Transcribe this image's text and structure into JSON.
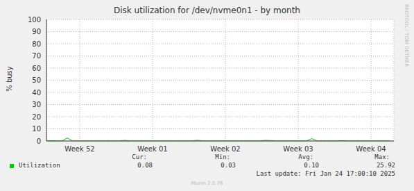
{
  "chart_data": {
    "type": "line",
    "title": "Disk utilization for /dev/nvme0n1 - by month",
    "y_label": "% busy",
    "x": [
      0,
      0.5,
      1,
      1.5,
      2,
      2.5,
      3,
      3.5,
      4,
      4.5,
      5,
      5.5,
      6,
      6.5,
      7,
      7.5,
      8,
      8.5,
      9,
      9.5,
      10,
      10.5,
      11,
      11.5,
      12,
      12.5,
      13,
      13.5,
      14,
      14.5,
      15,
      15.5,
      16,
      16.5,
      17,
      17.5,
      18,
      18.5,
      19,
      19.5,
      20,
      20.5,
      21,
      21.5,
      22,
      22.5,
      23,
      23.5,
      24,
      24.5,
      25,
      25.5,
      26,
      26.5,
      27,
      27.5,
      28,
      28.5,
      29,
      29.5,
      30,
      30.5,
      31,
      31.5,
      32,
      32.5,
      33
    ],
    "series": [
      {
        "name": "Utilization",
        "color": "#00cc00",
        "values": [
          0.08,
          0.3,
          0.07,
          0.09,
          2.5,
          0.08,
          0.06,
          0.09,
          0.08,
          0.07,
          0.1,
          0.08,
          0.09,
          0.07,
          0.08,
          0.5,
          0.08,
          0.06,
          0.09,
          0.08,
          0.07,
          0.09,
          0.08,
          0.1,
          0.07,
          0.08,
          0.09,
          0.08,
          0.07,
          0.6,
          0.08,
          0.09,
          0.07,
          0.08,
          0.1,
          0.08,
          0.07,
          0.09,
          0.08,
          0.06,
          0.08,
          0.09,
          0.5,
          0.4,
          0.08,
          0.07,
          0.09,
          0.08,
          0.1,
          0.08,
          0.07,
          2.0,
          0.08,
          0.09,
          0.07,
          0.08,
          0.1,
          0.3,
          0.08,
          0.07,
          0.09,
          0.08,
          0.07,
          0.08,
          0.09,
          0.08,
          0.08
        ]
      }
    ],
    "xlim": [
      0,
      33.4
    ],
    "xticks": [
      {
        "value": 3.2,
        "label": "Week 52"
      },
      {
        "value": 10.2,
        "label": "Week 01"
      },
      {
        "value": 17.2,
        "label": "Week 02"
      },
      {
        "value": 24.2,
        "label": "Week 03"
      },
      {
        "value": 31.2,
        "label": "Week 04"
      }
    ],
    "ylim": [
      0,
      100
    ],
    "yticks": [
      0,
      10,
      20,
      30,
      40,
      50,
      60,
      70,
      80,
      90,
      100
    ],
    "grid": true,
    "stats": [
      {
        "label": "Cur:",
        "value": 0.08
      },
      {
        "label": "Min:",
        "value": 0.03
      },
      {
        "label": "Avg:",
        "value": 0.1
      },
      {
        "label": "Max:",
        "value": 25.92
      }
    ],
    "last_update": "Last update: Fri Jan 24 17:00:10 2025",
    "footer": "Munin 2.0.76",
    "side_text": "RRDTOOL / TOBI OETIKER"
  }
}
